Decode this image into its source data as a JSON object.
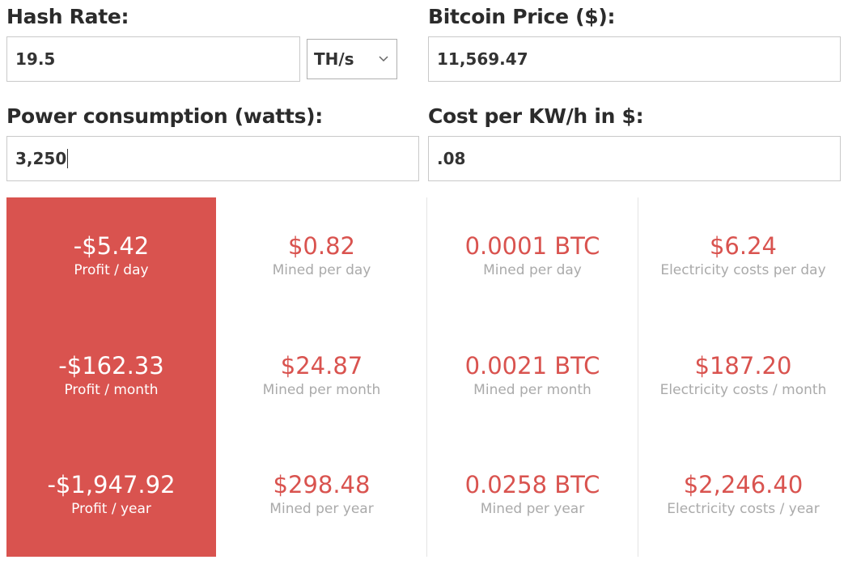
{
  "form": {
    "hash_rate": {
      "label": "Hash Rate:",
      "value": "19.5",
      "unit": "TH/s"
    },
    "bitcoin_price": {
      "label": "Bitcoin Price ($):",
      "value": "11,569.47"
    },
    "power": {
      "label": "Power consumption (watts):",
      "value": "3,250"
    },
    "cost": {
      "label": "Cost per KW/h in $:",
      "value": ".08"
    }
  },
  "results": {
    "profit": [
      {
        "value": "-$5.42",
        "label": "Profit / day"
      },
      {
        "value": "-$162.33",
        "label": "Profit / month"
      },
      {
        "value": "-$1,947.92",
        "label": "Profit / year"
      }
    ],
    "mined_usd": [
      {
        "value": "$0.82",
        "label": "Mined per day"
      },
      {
        "value": "$24.87",
        "label": "Mined per month"
      },
      {
        "value": "$298.48",
        "label": "Mined per year"
      }
    ],
    "mined_btc": [
      {
        "value": "0.0001 BTC",
        "label": "Mined per day"
      },
      {
        "value": "0.0021 BTC",
        "label": "Mined per month"
      },
      {
        "value": "0.0258 BTC",
        "label": "Mined per year"
      }
    ],
    "electricity": [
      {
        "value": "$6.24",
        "label": "Electricity costs per day"
      },
      {
        "value": "$187.20",
        "label": "Electricity costs / month"
      },
      {
        "value": "$2,246.40",
        "label": "Electricity costs / year"
      }
    ]
  },
  "colors": {
    "accent": "#d9534f",
    "muted_text": "#aaaaaa",
    "border": "#c9c9c9"
  }
}
